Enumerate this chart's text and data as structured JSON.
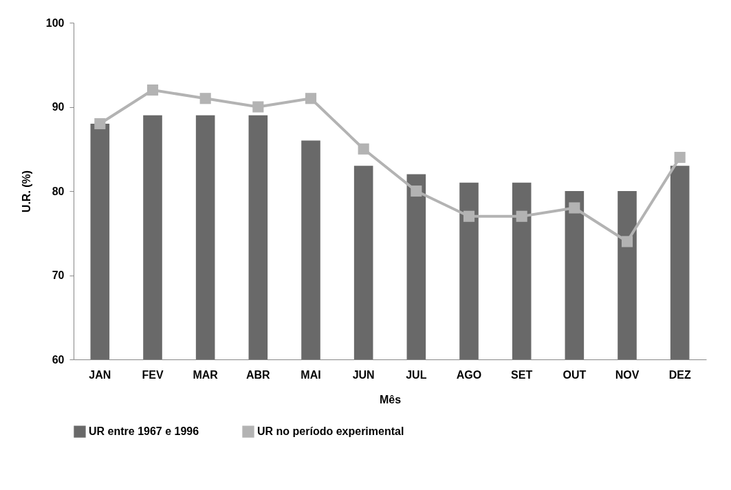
{
  "chart_data": {
    "type": "bar",
    "xlabel": "Mês",
    "ylabel": "U.R. (%)",
    "categories": [
      "JAN",
      "FEV",
      "MAR",
      "ABR",
      "MAI",
      "JUN",
      "JUL",
      "AGO",
      "SET",
      "OUT",
      "NOV",
      "DEZ"
    ],
    "series": [
      {
        "name": "UR entre 1967 e 1996",
        "color": "#696969",
        "values": [
          88,
          89,
          89,
          89,
          86,
          83,
          82,
          81,
          81,
          80,
          80,
          83
        ]
      },
      {
        "name": "UR no período experimental",
        "type": "line",
        "color": "#b3b3b3",
        "marker": "square",
        "values": [
          88,
          92,
          91,
          90,
          91,
          85,
          80,
          77,
          77,
          78,
          74,
          84
        ]
      }
    ],
    "ylim": [
      60,
      100
    ],
    "yticks": [
      60,
      70,
      80,
      90,
      100
    ],
    "grid": false,
    "legend": "bottom"
  }
}
